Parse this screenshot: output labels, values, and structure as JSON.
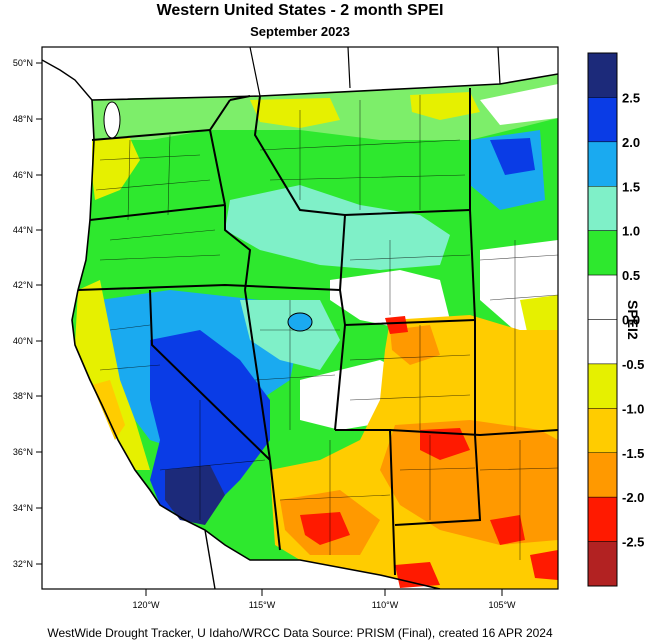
{
  "title": "Western United States - 2 month SPEI",
  "subtitle": "September 2023",
  "credit": "WestWide Drought Tracker, U Idaho/WRCC Data Source: PRISM (Final), created 16 APR 2024",
  "lat_labels": [
    "50°N",
    "48°N",
    "46°N",
    "44°N",
    "42°N",
    "40°N",
    "38°N",
    "36°N",
    "34°N",
    "32°N"
  ],
  "lon_labels": [
    "120°W",
    "115°W",
    "110°W",
    "105°W"
  ],
  "colorbar": {
    "title": "SPEI2",
    "labels": [
      "2.5",
      "2.0",
      "1.5",
      "1.0",
      "0.5",
      "0.0",
      "-0.5",
      "-1.0",
      "-1.5",
      "-2.0",
      "-2.5"
    ],
    "colors": [
      "#1c2a7a",
      "#0a3ce6",
      "#1aaaf0",
      "#7ff0c8",
      "#2ee82e",
      "#ffffff",
      "#ffffff",
      "#e6f000",
      "#ffcc00",
      "#ff9900",
      "#ff1a00",
      "#b22222"
    ]
  },
  "region_colors": {
    "green": "#2ee82e",
    "light_green": "#7dee6a",
    "cyan": "#1aaaf0",
    "aqua": "#7ff0c8",
    "blue": "#0a3ce6",
    "navy": "#1c2a7a",
    "white": "#ffffff",
    "yellow": "#e6f000",
    "gold": "#ffcc00",
    "orange": "#ff9900",
    "red": "#ff1a00",
    "ocean": "#ffffff"
  }
}
